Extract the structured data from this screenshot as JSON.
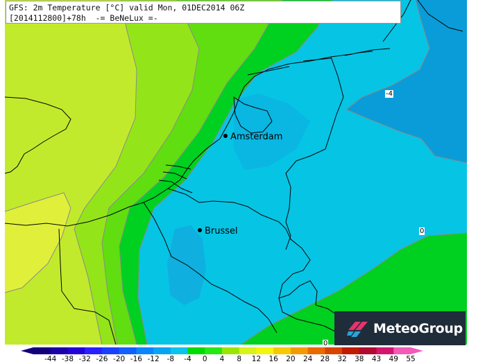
{
  "header": {
    "line1": "GFS: 2m Temperature [°C] valid Mon, 01DEC2014 06Z",
    "line2": "[2014112800]+78h  -= BeNeLux =-"
  },
  "cities": [
    {
      "name": "Amsterdam"
    },
    {
      "name": "Brussel"
    }
  ],
  "contour_labels": [
    "-4",
    "0",
    "0"
  ],
  "logo": {
    "text": "MeteoGroup",
    "icon": "meteogroup-logo-icon"
  },
  "legend": {
    "ticks": [
      "-44",
      "-38",
      "-32",
      "-26",
      "-20",
      "-16",
      "-12",
      "-8",
      "-4",
      "0",
      "4",
      "8",
      "12",
      "16",
      "20",
      "24",
      "28",
      "32",
      "38",
      "43",
      "49",
      "55"
    ],
    "colors": [
      "#12007a",
      "#1a00a8",
      "#2200d8",
      "#2a1fff",
      "#1a40ff",
      "#1060ff",
      "#0a84ff",
      "#08a4f4",
      "#0ac4ec",
      "#00dc00",
      "#26e816",
      "#9ae600",
      "#d8f21a",
      "#f4f40c",
      "#f8c800",
      "#f49a00",
      "#e86a00",
      "#d84400",
      "#c01a00",
      "#b00a30",
      "#d4146e",
      "#f25ab8"
    ],
    "unit": "°C"
  },
  "map_colors": {
    "lt_minus8": "#1aa0e6",
    "minus8_to_minus4": "#0a9cd8",
    "minus4_to_0": "#06c4e4",
    "zero_to_2": "#00d020",
    "two_to_4": "#56de10",
    "four_to_6": "#8ce41a",
    "six_to_8": "#baea2e",
    "eight_to_10": "#dcf03a"
  }
}
